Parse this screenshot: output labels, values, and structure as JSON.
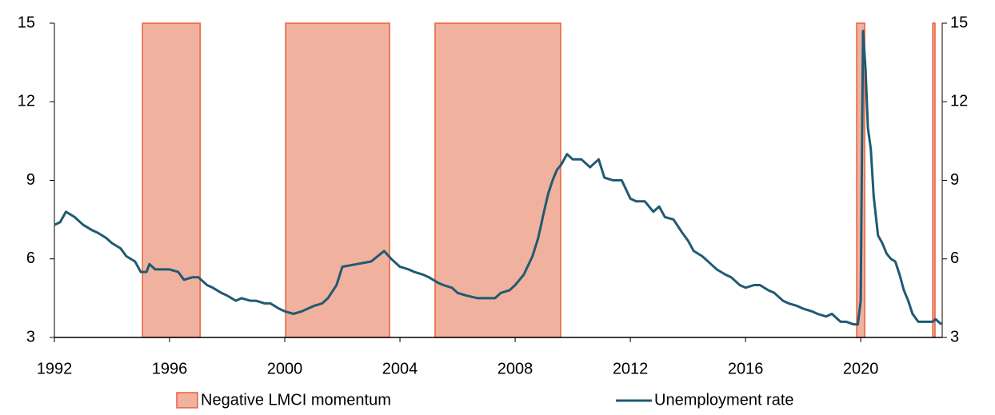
{
  "chart_data": {
    "type": "line",
    "shaded_periods": {
      "name": "Negative LMCI momentum",
      "color": "#f0b19e",
      "edge_color": "#e8603c",
      "ranges": [
        [
          1995.06,
          1997.06
        ],
        [
          2000.03,
          2003.64
        ],
        [
          2005.22,
          2009.58
        ],
        [
          2019.86,
          2020.14
        ],
        [
          2022.5,
          2022.58
        ]
      ]
    },
    "series": [
      {
        "name": "Unemployment rate",
        "color": "#1f5a73",
        "x": [
          1992.0,
          1992.2,
          1992.4,
          1992.7,
          1993.0,
          1993.3,
          1993.5,
          1993.8,
          1994.0,
          1994.3,
          1994.5,
          1994.8,
          1995.0,
          1995.2,
          1995.3,
          1995.5,
          1995.8,
          1996.0,
          1996.3,
          1996.5,
          1996.8,
          1997.0,
          1997.3,
          1997.5,
          1997.8,
          1998.0,
          1998.3,
          1998.5,
          1998.8,
          1999.0,
          1999.3,
          1999.5,
          1999.8,
          2000.0,
          2000.3,
          2000.6,
          2001.0,
          2001.3,
          2001.5,
          2001.8,
          2002.0,
          2002.5,
          2003.0,
          2003.45,
          2003.7,
          2004.0,
          2004.3,
          2004.5,
          2004.8,
          2005.0,
          2005.3,
          2005.5,
          2005.8,
          2006.0,
          2006.3,
          2006.7,
          2007.0,
          2007.3,
          2007.5,
          2007.8,
          2008.0,
          2008.3,
          2008.6,
          2008.8,
          2009.0,
          2009.15,
          2009.3,
          2009.45,
          2009.6,
          2009.8,
          2010.0,
          2010.3,
          2010.6,
          2010.9,
          2011.1,
          2011.4,
          2011.7,
          2012.0,
          2012.2,
          2012.5,
          2012.8,
          2013.0,
          2013.2,
          2013.5,
          2013.8,
          2014.0,
          2014.2,
          2014.5,
          2014.8,
          2015.0,
          2015.3,
          2015.5,
          2015.8,
          2016.0,
          2016.3,
          2016.5,
          2016.8,
          2017.0,
          2017.3,
          2017.5,
          2017.8,
          2018.0,
          2018.3,
          2018.5,
          2018.8,
          2019.0,
          2019.3,
          2019.5,
          2019.75,
          2019.9,
          2020.0,
          2020.08,
          2020.17,
          2020.25,
          2020.35,
          2020.45,
          2020.6,
          2020.75,
          2020.9,
          2021.05,
          2021.2,
          2021.35,
          2021.5,
          2021.65,
          2021.8,
          2022.0,
          2022.2,
          2022.4,
          2022.5,
          2022.6,
          2022.7,
          2022.8
        ],
        "values": [
          7.3,
          7.4,
          7.8,
          7.6,
          7.3,
          7.1,
          7.0,
          6.8,
          6.6,
          6.4,
          6.1,
          5.9,
          5.5,
          5.5,
          5.8,
          5.6,
          5.6,
          5.6,
          5.5,
          5.2,
          5.3,
          5.3,
          5.0,
          4.9,
          4.7,
          4.6,
          4.4,
          4.5,
          4.4,
          4.4,
          4.3,
          4.3,
          4.1,
          4.0,
          3.9,
          4.0,
          4.2,
          4.3,
          4.5,
          5.0,
          5.7,
          5.8,
          5.9,
          6.3,
          6.0,
          5.7,
          5.6,
          5.5,
          5.4,
          5.3,
          5.1,
          5.0,
          4.9,
          4.7,
          4.6,
          4.5,
          4.5,
          4.5,
          4.7,
          4.8,
          5.0,
          5.4,
          6.1,
          6.8,
          7.8,
          8.5,
          9.0,
          9.4,
          9.6,
          10.0,
          9.8,
          9.8,
          9.5,
          9.8,
          9.1,
          9.0,
          9.0,
          8.3,
          8.2,
          8.2,
          7.8,
          8.0,
          7.6,
          7.5,
          7.0,
          6.7,
          6.3,
          6.1,
          5.8,
          5.6,
          5.4,
          5.3,
          5.0,
          4.9,
          5.0,
          5.0,
          4.8,
          4.7,
          4.4,
          4.3,
          4.2,
          4.1,
          4.0,
          3.9,
          3.8,
          3.9,
          3.6,
          3.6,
          3.5,
          3.5,
          4.4,
          14.7,
          13.2,
          11.0,
          10.2,
          8.4,
          6.9,
          6.6,
          6.2,
          6.0,
          5.9,
          5.4,
          4.8,
          4.4,
          3.9,
          3.6,
          3.6,
          3.6,
          3.6,
          3.7,
          3.6,
          3.5
        ]
      }
    ],
    "xlim": [
      1992,
      2022.83
    ],
    "xticks": [
      1992,
      1996,
      2000,
      2004,
      2008,
      2012,
      2016,
      2020
    ],
    "ylim": [
      3,
      15
    ],
    "yticks": [
      3,
      6,
      9,
      12,
      15
    ],
    "y2lim": [
      3,
      15
    ],
    "y2ticks": [
      3,
      6,
      9,
      12,
      15
    ]
  }
}
